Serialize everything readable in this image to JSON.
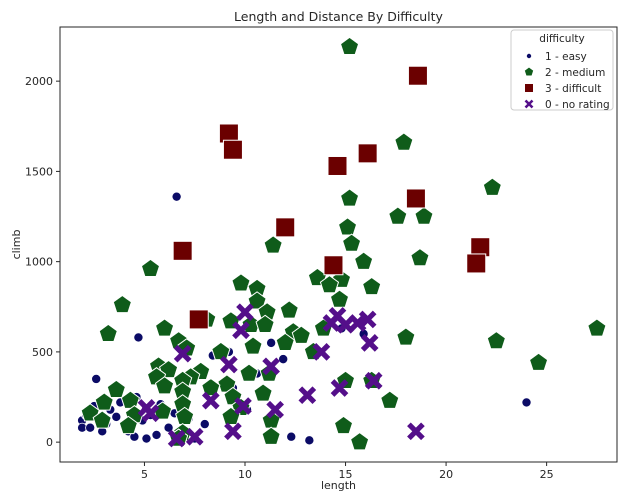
{
  "chart_data": {
    "type": "scatter",
    "title": "Length and Distance By Difficulty",
    "xlabel": "length",
    "ylabel": "climb",
    "xlim": [
      0.8,
      28.5
    ],
    "ylim": [
      -110,
      2300
    ],
    "xticks": [
      5,
      10,
      15,
      20,
      25
    ],
    "yticks": [
      0,
      500,
      1000,
      1500,
      2000
    ],
    "grid": false,
    "legend": {
      "title": "difficulty",
      "placement": "top-right"
    },
    "series": [
      {
        "name": "1 - easy",
        "marker": "circle",
        "color": "#0b0b66",
        "points": [
          [
            1.9,
            120
          ],
          [
            1.9,
            80
          ],
          [
            2.1,
            150
          ],
          [
            2.3,
            80
          ],
          [
            2.5,
            200
          ],
          [
            2.6,
            350
          ],
          [
            2.7,
            120
          ],
          [
            2.9,
            60
          ],
          [
            3.1,
            100
          ],
          [
            3.3,
            180
          ],
          [
            3.6,
            140
          ],
          [
            3.8,
            220
          ],
          [
            4.0,
            90
          ],
          [
            4.2,
            60
          ],
          [
            4.5,
            30
          ],
          [
            4.6,
            250
          ],
          [
            4.7,
            580
          ],
          [
            4.9,
            120
          ],
          [
            5.1,
            20
          ],
          [
            5.3,
            150
          ],
          [
            5.6,
            40
          ],
          [
            5.8,
            210
          ],
          [
            6.2,
            80
          ],
          [
            6.5,
            160
          ],
          [
            6.6,
            1360
          ],
          [
            6.8,
            50
          ],
          [
            7.2,
            130
          ],
          [
            7.5,
            20
          ],
          [
            8.0,
            100
          ],
          [
            8.4,
            480
          ],
          [
            9.2,
            500
          ],
          [
            9.4,
            300
          ],
          [
            10.1,
            180
          ],
          [
            10.6,
            380
          ],
          [
            11.3,
            550
          ],
          [
            11.9,
            460
          ],
          [
            12.3,
            30
          ],
          [
            13.2,
            10
          ],
          [
            14.8,
            630
          ],
          [
            15.9,
            600
          ],
          [
            24.0,
            220
          ]
        ]
      },
      {
        "name": "2 - medium",
        "marker": "pentagon",
        "color": "#0f5c1a",
        "points": [
          [
            15.2,
            2190
          ],
          [
            17.9,
            1660
          ],
          [
            22.3,
            1410
          ],
          [
            15.2,
            1350
          ],
          [
            17.6,
            1250
          ],
          [
            18.9,
            1250
          ],
          [
            15.1,
            1190
          ],
          [
            15.3,
            1100
          ],
          [
            11.4,
            1090
          ],
          [
            18.7,
            1020
          ],
          [
            15.9,
            1000
          ],
          [
            5.3,
            960
          ],
          [
            13.6,
            910
          ],
          [
            14.8,
            900
          ],
          [
            9.8,
            880
          ],
          [
            14.2,
            870
          ],
          [
            16.3,
            860
          ],
          [
            10.6,
            850
          ],
          [
            10.6,
            780
          ],
          [
            3.9,
            760
          ],
          [
            14.7,
            790
          ],
          [
            12.2,
            730
          ],
          [
            11.1,
            720
          ],
          [
            8.1,
            680
          ],
          [
            9.3,
            670
          ],
          [
            10.3,
            650
          ],
          [
            11.0,
            650
          ],
          [
            27.5,
            630
          ],
          [
            6.0,
            630
          ],
          [
            13.9,
            630
          ],
          [
            12.4,
            610
          ],
          [
            3.2,
            600
          ],
          [
            12.8,
            590
          ],
          [
            18.0,
            580
          ],
          [
            22.5,
            560
          ],
          [
            6.7,
            560
          ],
          [
            12.0,
            550
          ],
          [
            10.4,
            530
          ],
          [
            7.1,
            520
          ],
          [
            8.8,
            500
          ],
          [
            13.4,
            500
          ],
          [
            24.6,
            440
          ],
          [
            5.7,
            420
          ],
          [
            6.2,
            400
          ],
          [
            7.8,
            390
          ],
          [
            10.2,
            380
          ],
          [
            11.2,
            380
          ],
          [
            7.3,
            360
          ],
          [
            5.6,
            360
          ],
          [
            6.9,
            340
          ],
          [
            15.0,
            340
          ],
          [
            16.3,
            340
          ],
          [
            9.1,
            320
          ],
          [
            6.0,
            310
          ],
          [
            8.3,
            300
          ],
          [
            3.6,
            290
          ],
          [
            6.9,
            280
          ],
          [
            10.9,
            270
          ],
          [
            9.4,
            250
          ],
          [
            4.3,
            230
          ],
          [
            17.2,
            230
          ],
          [
            3.0,
            220
          ],
          [
            6.9,
            210
          ],
          [
            9.8,
            190
          ],
          [
            5.9,
            170
          ],
          [
            2.3,
            160
          ],
          [
            4.5,
            150
          ],
          [
            7.0,
            140
          ],
          [
            9.3,
            140
          ],
          [
            2.9,
            120
          ],
          [
            11.3,
            120
          ],
          [
            4.2,
            90
          ],
          [
            14.9,
            90
          ],
          [
            6.9,
            50
          ],
          [
            11.3,
            30
          ],
          [
            6.7,
            20
          ],
          [
            15.7,
            0
          ]
        ]
      },
      {
        "name": "3 - difficult",
        "marker": "square",
        "color": "#6b0000",
        "points": [
          [
            18.6,
            2030
          ],
          [
            9.2,
            1710
          ],
          [
            9.4,
            1620
          ],
          [
            16.1,
            1600
          ],
          [
            14.6,
            1530
          ],
          [
            18.5,
            1350
          ],
          [
            12.0,
            1190
          ],
          [
            21.7,
            1080
          ],
          [
            6.9,
            1060
          ],
          [
            21.5,
            990
          ],
          [
            14.4,
            980
          ],
          [
            7.7,
            680
          ]
        ]
      },
      {
        "name": "0 - no rating",
        "marker": "x",
        "color": "#540f8a",
        "points": [
          [
            6.9,
            490
          ],
          [
            9.2,
            430
          ],
          [
            11.3,
            420
          ],
          [
            14.6,
            700
          ],
          [
            15.0,
            650
          ],
          [
            15.6,
            660
          ],
          [
            16.1,
            680
          ],
          [
            14.3,
            660
          ],
          [
            10.0,
            720
          ],
          [
            9.8,
            620
          ],
          [
            16.2,
            550
          ],
          [
            13.8,
            500
          ],
          [
            14.7,
            300
          ],
          [
            8.3,
            230
          ],
          [
            9.9,
            200
          ],
          [
            13.1,
            260
          ],
          [
            11.5,
            180
          ],
          [
            5.1,
            190
          ],
          [
            5.3,
            160
          ],
          [
            6.6,
            20
          ],
          [
            7.5,
            30
          ],
          [
            9.4,
            60
          ],
          [
            18.5,
            60
          ],
          [
            16.4,
            340
          ]
        ]
      }
    ]
  }
}
